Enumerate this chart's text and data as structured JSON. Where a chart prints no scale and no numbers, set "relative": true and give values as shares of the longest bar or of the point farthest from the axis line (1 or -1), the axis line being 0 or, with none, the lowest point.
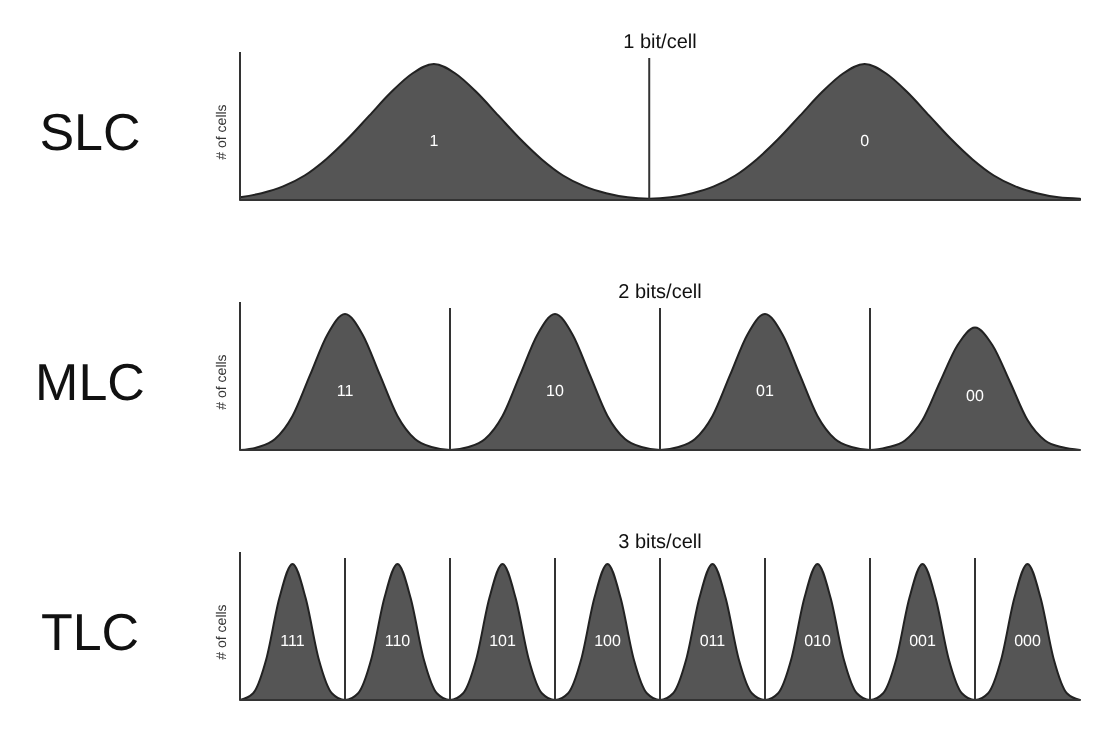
{
  "chart_data": [
    {
      "type": "area",
      "title": "SLC",
      "subtitle": "1 bit/cell",
      "ylabel": "# of cells",
      "relative": true,
      "color": "#555555",
      "annotations": [
        "1",
        "0"
      ],
      "grid": "x",
      "categories": [
        null,
        null,
        null,
        null,
        null,
        null,
        null,
        null,
        null,
        null,
        null,
        null,
        null,
        null,
        null,
        null,
        null,
        null,
        null,
        null,
        null,
        null,
        null,
        null,
        null,
        null,
        null,
        null,
        null,
        null,
        null,
        null,
        null,
        null,
        null,
        null,
        null,
        null,
        null,
        null
      ],
      "values": [
        0.02,
        0.05,
        0.1,
        0.18,
        0.3,
        0.45,
        0.62,
        0.79,
        0.93,
        1,
        0.93,
        0.79,
        0.62,
        0.45,
        0.3,
        0.18,
        0.1,
        0.05,
        0.02,
        0.01,
        0.02,
        0.05,
        0.1,
        0.18,
        0.3,
        0.45,
        0.62,
        0.79,
        0.93,
        1,
        0.93,
        0.79,
        0.62,
        0.45,
        0.3,
        0.18,
        0.1,
        0.05,
        0.02,
        0.01
      ]
    },
    {
      "type": "area",
      "title": "MLC",
      "subtitle": "2 bits/cell",
      "ylabel": "# of cells",
      "relative": true,
      "color": "#555555",
      "annotations": [
        "11",
        "10",
        "01",
        "00"
      ],
      "grid": "x",
      "categories": [
        null,
        null,
        null,
        null,
        null,
        null,
        null,
        null,
        null,
        null,
        null,
        null,
        null,
        null,
        null,
        null,
        null,
        null,
        null,
        null,
        null,
        null,
        null,
        null,
        null,
        null,
        null,
        null,
        null,
        null,
        null,
        null,
        null,
        null,
        null,
        null,
        null,
        null,
        null,
        null,
        null,
        null,
        null,
        null,
        null,
        null,
        null,
        null,
        null
      ],
      "values": [
        0,
        0.02,
        0.08,
        0.25,
        0.55,
        0.85,
        1,
        0.85,
        0.55,
        0.25,
        0.08,
        0.02,
        0,
        0.02,
        0.08,
        0.25,
        0.55,
        0.85,
        1,
        0.85,
        0.55,
        0.25,
        0.08,
        0.02,
        0,
        0.02,
        0.08,
        0.25,
        0.55,
        0.85,
        1,
        0.85,
        0.55,
        0.25,
        0.08,
        0.02,
        0,
        0.02,
        0.07,
        0.22,
        0.5,
        0.77,
        0.9,
        0.77,
        0.5,
        0.22,
        0.07,
        0.02,
        0
      ]
    },
    {
      "type": "area",
      "title": "TLC",
      "subtitle": "3 bits/cell",
      "ylabel": "# of cells",
      "relative": true,
      "color": "#555555",
      "annotations": [
        "111",
        "110",
        "101",
        "100",
        "011",
        "010",
        "001",
        "000"
      ],
      "grid": "x",
      "categories": [
        null,
        null,
        null,
        null,
        null,
        null,
        null,
        null,
        null,
        null,
        null,
        null,
        null,
        null,
        null,
        null,
        null,
        null,
        null,
        null,
        null,
        null,
        null,
        null,
        null,
        null,
        null,
        null,
        null,
        null,
        null,
        null,
        null,
        null,
        null,
        null,
        null,
        null,
        null,
        null,
        null,
        null,
        null,
        null,
        null,
        null,
        null,
        null,
        null,
        null,
        null,
        null,
        null,
        null,
        null,
        null,
        null,
        null,
        null,
        null,
        null,
        null,
        null,
        null,
        null
      ],
      "values": [
        0,
        0.05,
        0.3,
        0.75,
        1,
        0.75,
        0.3,
        0.05,
        0,
        0.05,
        0.3,
        0.75,
        1,
        0.75,
        0.3,
        0.05,
        0,
        0.05,
        0.3,
        0.75,
        1,
        0.75,
        0.3,
        0.05,
        0,
        0.05,
        0.3,
        0.75,
        1,
        0.75,
        0.3,
        0.05,
        0,
        0.05,
        0.3,
        0.75,
        1,
        0.75,
        0.3,
        0.05,
        0,
        0.05,
        0.3,
        0.75,
        1,
        0.75,
        0.3,
        0.05,
        0,
        0.05,
        0.3,
        0.75,
        1,
        0.75,
        0.3,
        0.05,
        0,
        0.05,
        0.3,
        0.75,
        1,
        0.75,
        0.3,
        0.05,
        0
      ]
    }
  ]
}
